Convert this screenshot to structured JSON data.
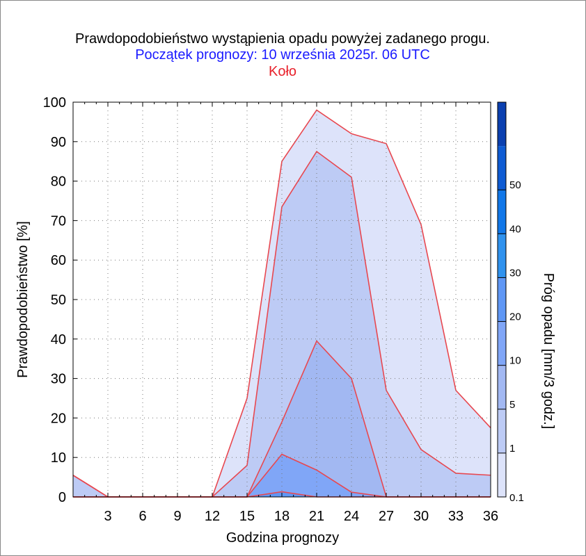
{
  "header": {
    "title": "Prawdopodobieństwo wystąpienia opadu powyżej zadanego progu.",
    "subtitle": "Początek prognozy: 10 września 2025r. 06 UTC",
    "location": "Koło"
  },
  "colors": {
    "outline": "#e8474f",
    "fill_0_1": "#dde3fa",
    "fill_1": "#bdcbf5",
    "fill_5": "#a2b8f2",
    "fill_10": "#80a6f7",
    "fill_20": "#5f97f5",
    "fill_30": "#2f92ee",
    "fill_40": "#1177e8",
    "fill_50": "#0e5bd3",
    "fill_top": "#0b40b0"
  },
  "chart_data": {
    "type": "area",
    "xlabel": "Godzina prognozy",
    "ylabel": "Prawdopodobieństwo [%]",
    "colorbar_label": "Próg opadu [mm/3 godz.]",
    "x": [
      0,
      3,
      6,
      9,
      12,
      15,
      18,
      21,
      24,
      27,
      30,
      33,
      36
    ],
    "x_ticks": [
      "3",
      "6",
      "9",
      "12",
      "15",
      "18",
      "21",
      "24",
      "27",
      "30",
      "33",
      "36"
    ],
    "xlim": [
      0,
      36
    ],
    "ylim": [
      0,
      100
    ],
    "y_ticks": [
      "0",
      "10",
      "20",
      "30",
      "40",
      "50",
      "60",
      "70",
      "80",
      "90",
      "100"
    ],
    "colorbar_ticks": [
      "0.1",
      "1",
      "5",
      "10",
      "20",
      "30",
      "40",
      "50"
    ],
    "series": [
      {
        "threshold": "0.1",
        "values": [
          5.5,
          0,
          0,
          0,
          0,
          25,
          85,
          98,
          92,
          89.5,
          69,
          27,
          17.5
        ]
      },
      {
        "threshold": "1",
        "values": [
          5.5,
          0,
          0,
          0,
          0,
          8,
          73.5,
          87.5,
          81,
          27,
          12,
          6,
          5.5
        ]
      },
      {
        "threshold": "5",
        "values": [
          0,
          0,
          0,
          0,
          0,
          0,
          19,
          39.5,
          30,
          0,
          0,
          0,
          0
        ]
      },
      {
        "threshold": "10",
        "values": [
          0,
          0,
          0,
          0,
          0,
          0,
          10.8,
          6.8,
          1.2,
          0,
          0,
          0,
          0
        ]
      },
      {
        "threshold": "20",
        "values": [
          0,
          0,
          0,
          0,
          0,
          0,
          1.3,
          0,
          0,
          0,
          0,
          0,
          0
        ]
      }
    ]
  }
}
